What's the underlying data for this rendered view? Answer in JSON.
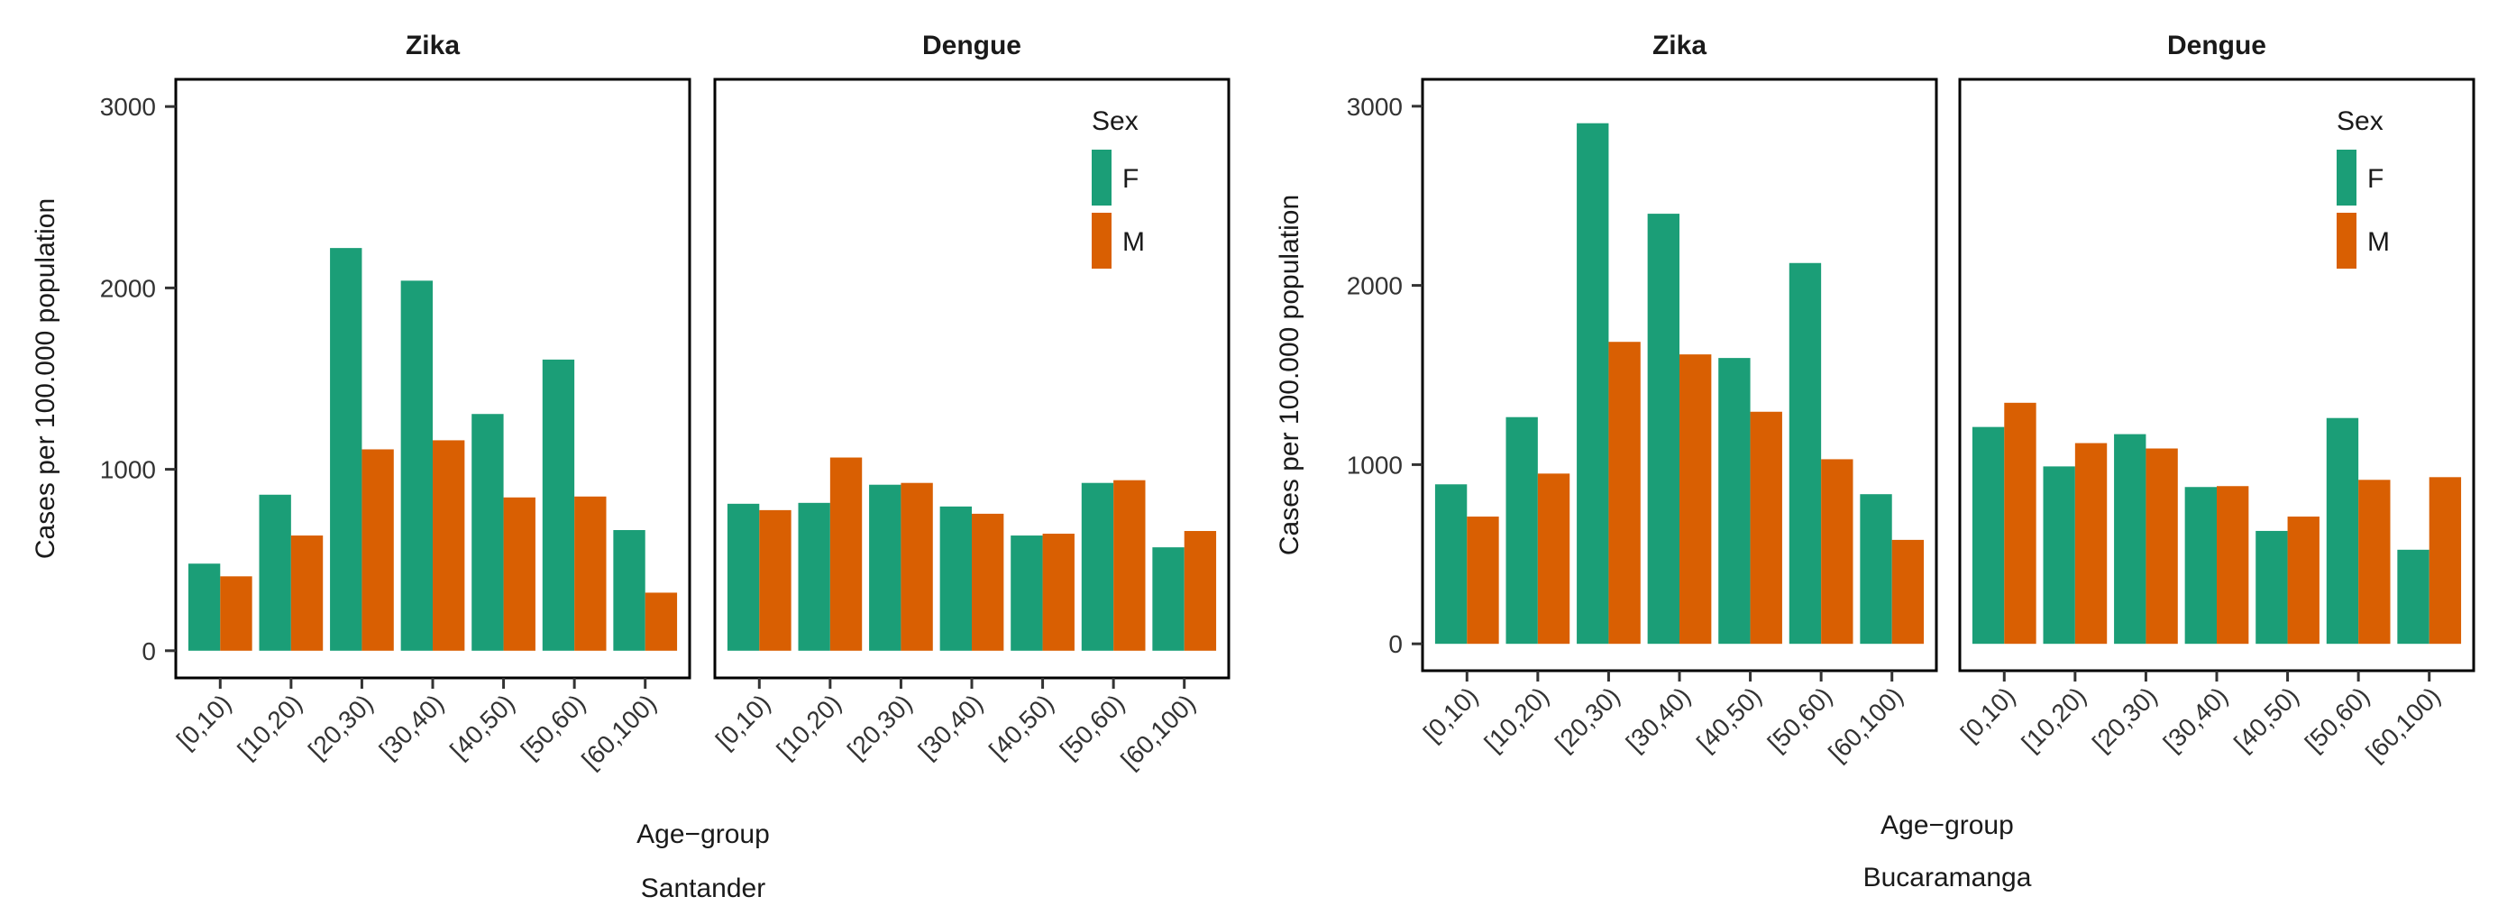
{
  "colors": {
    "F": "#1b9e77",
    "M": "#d95f02"
  },
  "chart_data": [
    {
      "type": "bar",
      "region": "Santander",
      "xlabel": "Age−group",
      "ylabel": "Cases per 100.000 population",
      "ylim": [
        0,
        3000
      ],
      "yticks": [
        "0",
        "1000",
        "2000",
        "3000"
      ],
      "categories": [
        "[0,10)",
        "[10,20)",
        "[20,30)",
        "[30,40)",
        "[40,50)",
        "[50,60)",
        "[60,100)"
      ],
      "legend": {
        "title": "Sex",
        "placement": "top-right of Dengue panel",
        "entries": [
          "F",
          "M"
        ]
      },
      "panels": [
        {
          "title": "Zika",
          "series": [
            {
              "name": "F",
              "values": [
                480,
                860,
                2220,
                2040,
                1305,
                1605,
                665
              ]
            },
            {
              "name": "M",
              "values": [
                410,
                635,
                1110,
                1160,
                845,
                850,
                320
              ]
            }
          ]
        },
        {
          "title": "Dengue",
          "series": [
            {
              "name": "F",
              "values": [
                810,
                815,
                915,
                795,
                635,
                925,
                570
              ]
            },
            {
              "name": "M",
              "values": [
                775,
                1065,
                925,
                755,
                645,
                940,
                660
              ]
            }
          ]
        }
      ]
    },
    {
      "type": "bar",
      "region": "Bucaramanga",
      "xlabel": "Age−group",
      "ylabel": "Cases per 100.000 population",
      "ylim": [
        0,
        3000
      ],
      "yticks": [
        "0",
        "1000",
        "2000",
        "3000"
      ],
      "categories": [
        "[0,10)",
        "[10,20)",
        "[20,30)",
        "[30,40)",
        "[40,50)",
        "[50,60)",
        "[60,100)"
      ],
      "legend": {
        "title": "Sex",
        "placement": "top-right of Dengue panel",
        "entries": [
          "F",
          "M"
        ]
      },
      "panels": [
        {
          "title": "Zika",
          "series": [
            {
              "name": "F",
              "values": [
                890,
                1265,
                2905,
                2400,
                1595,
                2125,
                835
              ]
            },
            {
              "name": "M",
              "values": [
                710,
                950,
                1685,
                1615,
                1295,
                1030,
                580
              ]
            }
          ]
        },
        {
          "title": "Dengue",
          "series": [
            {
              "name": "F",
              "values": [
                1210,
                990,
                1170,
                875,
                630,
                1260,
                525
              ]
            },
            {
              "name": "M",
              "values": [
                1345,
                1120,
                1090,
                880,
                710,
                915,
                930
              ]
            }
          ]
        }
      ]
    }
  ]
}
